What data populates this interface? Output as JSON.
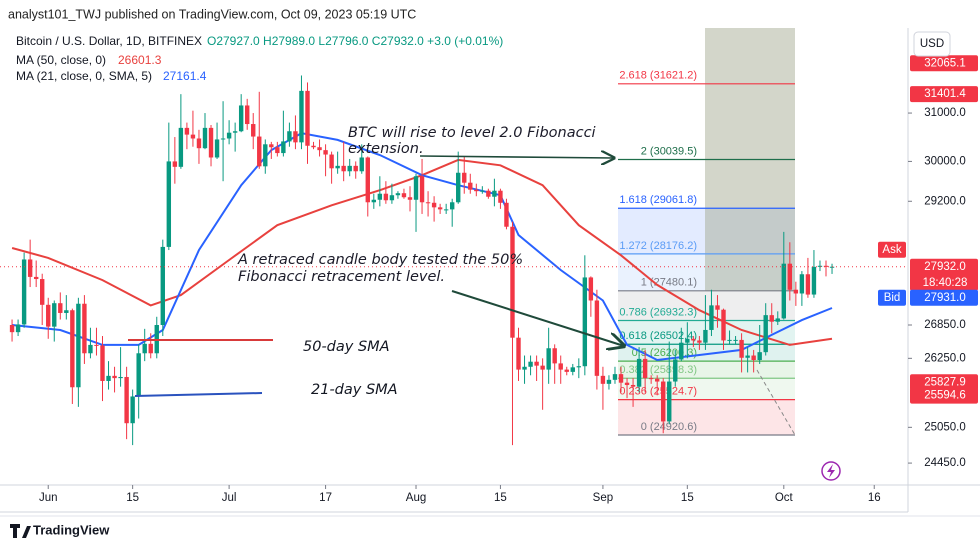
{
  "header": {
    "publisher": "analyst101_TWJ published on TradingView.com, Oct 09, 2023 05:19 UTC",
    "symbol": "Bitcoin / U.S. Dollar, 1D, BITFINEX",
    "ohlc": "O27927.0 H27989.0 L27796.0 C27932.0 +3.0 (+0.01%)",
    "currency": "USD",
    "brand": "TradingView"
  },
  "chart_data": {
    "type": "candlestick",
    "log_scale": true,
    "grid": false,
    "up_color": "#089981",
    "down_color": "#f23645",
    "xlim": [
      -2,
      148.6
    ],
    "xticks": [
      {
        "value": 6,
        "label": "Jun"
      },
      {
        "value": 20,
        "label": "15"
      },
      {
        "value": 36,
        "label": "Jul"
      },
      {
        "value": 52,
        "label": "17"
      },
      {
        "value": 67,
        "label": "Aug"
      },
      {
        "value": 81,
        "label": "15"
      },
      {
        "value": 98,
        "label": "Sep"
      },
      {
        "value": 112,
        "label": "15"
      },
      {
        "value": 128,
        "label": "Oct"
      },
      {
        "value": 143,
        "label": "16"
      }
    ],
    "ylim": [
      24122,
      32796
    ],
    "yticks": [
      {
        "value": 24450,
        "label": "24450.0"
      },
      {
        "value": 25050,
        "label": "25050.0"
      },
      {
        "value": 26250,
        "label": "26250.0"
      },
      {
        "value": 26850,
        "label": "26850.0"
      },
      {
        "value": 29200,
        "label": "29200.0"
      },
      {
        "value": 30000,
        "label": "30000.0"
      },
      {
        "value": 31000,
        "label": "31000.0"
      }
    ],
    "ohlc": [
      [
        26850,
        26950,
        26550,
        26720
      ],
      [
        26720,
        26950,
        26650,
        26860
      ],
      [
        26860,
        28200,
        26800,
        28070
      ],
      [
        28070,
        28450,
        27550,
        27740
      ],
      [
        27740,
        28050,
        27550,
        27700
      ],
      [
        27700,
        27800,
        26850,
        27220
      ],
      [
        27220,
        27350,
        26600,
        26820
      ],
      [
        26820,
        27300,
        26550,
        27250
      ],
      [
        27250,
        27450,
        26950,
        27070
      ],
      [
        27070,
        27400,
        26950,
        27120
      ],
      [
        27120,
        27150,
        25450,
        25740
      ],
      [
        25740,
        27350,
        25400,
        27240
      ],
      [
        27240,
        27400,
        26150,
        26340
      ],
      [
        26340,
        26800,
        26250,
        26490
      ],
      [
        26490,
        26800,
        26300,
        26480
      ],
      [
        26480,
        26650,
        25500,
        25850
      ],
      [
        25850,
        26200,
        25700,
        25940
      ],
      [
        25940,
        26100,
        25650,
        25900
      ],
      [
        25900,
        26450,
        25750,
        25920
      ],
      [
        25920,
        26100,
        24850,
        25120
      ],
      [
        25120,
        25700,
        24750,
        25580
      ],
      [
        25580,
        26500,
        25200,
        26340
      ],
      [
        26340,
        26780,
        26200,
        26510
      ],
      [
        26510,
        26700,
        26250,
        26340
      ],
      [
        26340,
        27000,
        26250,
        26850
      ],
      [
        26850,
        28450,
        26650,
        28310
      ],
      [
        28310,
        30800,
        28250,
        30000
      ],
      [
        30000,
        30500,
        29550,
        29890
      ],
      [
        29890,
        31400,
        29850,
        30690
      ],
      [
        30690,
        30800,
        30250,
        30550
      ],
      [
        30550,
        31050,
        30300,
        30470
      ],
      [
        30470,
        30650,
        29950,
        30270
      ],
      [
        30270,
        31000,
        30250,
        30690
      ],
      [
        30690,
        30750,
        29900,
        30080
      ],
      [
        30080,
        30800,
        30050,
        30450
      ],
      [
        30450,
        31250,
        29600,
        30470
      ],
      [
        30470,
        30850,
        30350,
        30590
      ],
      [
        30590,
        30800,
        30200,
        30620
      ],
      [
        30620,
        31400,
        30600,
        31160
      ],
      [
        31160,
        31300,
        30650,
        30770
      ],
      [
        30770,
        31000,
        30250,
        30510
      ],
      [
        30510,
        31450,
        29850,
        29900
      ],
      [
        29900,
        30450,
        29750,
        30350
      ],
      [
        30350,
        30400,
        30050,
        30290
      ],
      [
        30290,
        30400,
        30100,
        30170
      ],
      [
        30170,
        31050,
        30100,
        30410
      ],
      [
        30410,
        30800,
        30300,
        30620
      ],
      [
        30620,
        30950,
        30250,
        30390
      ],
      [
        30390,
        31800,
        30250,
        31470
      ],
      [
        31470,
        31650,
        29950,
        30320
      ],
      [
        30320,
        30400,
        30250,
        30290
      ],
      [
        30290,
        30450,
        30100,
        30230
      ],
      [
        30230,
        30350,
        29700,
        30140
      ],
      [
        30140,
        30200,
        29550,
        29860
      ],
      [
        29860,
        30200,
        29750,
        29910
      ],
      [
        29910,
        30400,
        29600,
        29800
      ],
      [
        29800,
        30050,
        29700,
        29910
      ],
      [
        29910,
        30000,
        29650,
        29800
      ],
      [
        29800,
        30350,
        29750,
        30080
      ],
      [
        30080,
        30100,
        28900,
        29180
      ],
      [
        29180,
        29350,
        29050,
        29230
      ],
      [
        29230,
        29700,
        29100,
        29350
      ],
      [
        29350,
        29600,
        29150,
        29220
      ],
      [
        29220,
        29550,
        29150,
        29320
      ],
      [
        29320,
        29400,
        29250,
        29360
      ],
      [
        29360,
        29450,
        29250,
        29280
      ],
      [
        29280,
        29500,
        29000,
        29230
      ],
      [
        29230,
        29750,
        28600,
        29700
      ],
      [
        29700,
        30050,
        28950,
        29180
      ],
      [
        29180,
        29400,
        28900,
        29170
      ],
      [
        29170,
        29300,
        28800,
        29080
      ],
      [
        29080,
        29150,
        28950,
        29040
      ],
      [
        29040,
        29150,
        28950,
        29040
      ],
      [
        29040,
        29250,
        28700,
        29180
      ],
      [
        29180,
        30200,
        29150,
        29770
      ],
      [
        29770,
        30100,
        29350,
        29570
      ],
      [
        29570,
        29750,
        29350,
        29430
      ],
      [
        29430,
        29550,
        29300,
        29400
      ],
      [
        29400,
        29500,
        29350,
        29410
      ],
      [
        29410,
        29450,
        29250,
        29290
      ],
      [
        29290,
        29650,
        29100,
        29410
      ],
      [
        29410,
        29450,
        29050,
        29170
      ],
      [
        29170,
        29250,
        28650,
        28700
      ],
      [
        28700,
        28800,
        24750,
        26620
      ],
      [
        26620,
        26800,
        25850,
        26050
      ],
      [
        26050,
        26300,
        25800,
        26100
      ],
      [
        26100,
        26300,
        25950,
        26190
      ],
      [
        26190,
        26300,
        25850,
        26120
      ],
      [
        26120,
        26250,
        25350,
        26050
      ],
      [
        26050,
        26800,
        25800,
        26430
      ],
      [
        26430,
        26500,
        25800,
        26160
      ],
      [
        26160,
        26300,
        25800,
        26050
      ],
      [
        26050,
        26100,
        25950,
        26010
      ],
      [
        26010,
        26150,
        25950,
        26090
      ],
      [
        26090,
        26250,
        25900,
        26110
      ],
      [
        26110,
        28150,
        25950,
        27730
      ],
      [
        27730,
        27750,
        27000,
        27300
      ],
      [
        27300,
        27500,
        25700,
        25940
      ],
      [
        25940,
        26100,
        25350,
        25800
      ],
      [
        25800,
        25950,
        25700,
        25870
      ],
      [
        25870,
        26100,
        25800,
        25970
      ],
      [
        25970,
        26100,
        25650,
        25820
      ],
      [
        25820,
        25900,
        25550,
        25780
      ],
      [
        25780,
        25900,
        25400,
        25750
      ],
      [
        25750,
        26450,
        25650,
        26240
      ],
      [
        26240,
        26400,
        25650,
        25900
      ],
      [
        25900,
        25950,
        25800,
        25890
      ],
      [
        25890,
        25950,
        25600,
        25840
      ],
      [
        25840,
        25900,
        24950,
        25150
      ],
      [
        25150,
        26550,
        25100,
        25840
      ],
      [
        25840,
        26400,
        25750,
        26230
      ],
      [
        26230,
        26800,
        26200,
        26530
      ],
      [
        26530,
        26900,
        26250,
        26600
      ],
      [
        26600,
        26650,
        26450,
        26570
      ],
      [
        26570,
        26650,
        26400,
        26530
      ],
      [
        26530,
        27400,
        26400,
        26760
      ],
      [
        26760,
        27500,
        26650,
        27210
      ],
      [
        27210,
        27400,
        26800,
        27130
      ],
      [
        27130,
        27150,
        26400,
        26570
      ],
      [
        26570,
        26750,
        26500,
        26580
      ],
      [
        26580,
        26650,
        26500,
        26580
      ],
      [
        26580,
        26700,
        26000,
        26260
      ],
      [
        26260,
        26450,
        26000,
        26300
      ],
      [
        26300,
        26400,
        26000,
        26220
      ],
      [
        26220,
        26850,
        26150,
        26360
      ],
      [
        26360,
        27250,
        26300,
        27030
      ],
      [
        27030,
        27250,
        26700,
        26910
      ],
      [
        26910,
        27100,
        26850,
        26970
      ],
      [
        26970,
        28600,
        26950,
        27990
      ],
      [
        27990,
        28400,
        27300,
        27500
      ],
      [
        27500,
        27650,
        27200,
        27430
      ],
      [
        27430,
        27850,
        27200,
        27790
      ],
      [
        27790,
        28100,
        27350,
        27410
      ],
      [
        27410,
        28250,
        27350,
        27930
      ],
      [
        27930,
        28050,
        27850,
        27950
      ],
      [
        27950,
        28050,
        27750,
        27930
      ],
      [
        27927,
        27989,
        27796,
        27932
      ]
    ],
    "series": [
      {
        "name": "MA (50, close, 0)",
        "color": "#e8413e",
        "x": [
          0,
          6,
          15,
          23,
          28,
          36,
          44,
          53,
          61,
          68,
          74,
          81,
          88,
          94,
          101,
          107,
          114,
          121,
          129,
          136
        ],
        "values": [
          28290,
          28100,
          27680,
          27210,
          27400,
          28060,
          28730,
          29120,
          29420,
          29720,
          30030,
          29920,
          29520,
          28730,
          28150,
          27590,
          27120,
          26760,
          26490,
          26601.3
        ]
      },
      {
        "name": "MA (21, close, 0, SMA, 5)",
        "color": "#2962ff",
        "x": [
          0,
          8,
          15,
          21,
          25,
          31,
          38,
          43,
          48,
          54,
          61,
          68,
          74,
          81,
          84,
          91,
          98,
          102,
          107,
          114,
          121,
          126,
          131,
          136
        ],
        "values": [
          26850,
          26760,
          26490,
          26490,
          26760,
          28250,
          29520,
          30230,
          30580,
          30440,
          30130,
          29720,
          29520,
          29320,
          28540,
          27870,
          27300,
          26490,
          26220,
          26310,
          26400,
          26670,
          26940,
          27161.4
        ]
      }
    ],
    "fib_levels": [
      {
        "value": 31621.2,
        "label": "2.618 (31621.2)",
        "color": "#f23645"
      },
      {
        "value": 30039.5,
        "label": "2 (30039.5)",
        "color": "#1e6e4a"
      },
      {
        "value": 29061.8,
        "label": "1.618 (29061.8)",
        "color": "#2962ff"
      },
      {
        "value": 28176.2,
        "label": "1.272 (28176.2)",
        "color": "#5b9cf6"
      },
      {
        "value": 27480.1,
        "label": "1 (27480.1)",
        "color": "#787b86"
      },
      {
        "value": 26932.3,
        "label": "0.786 (26932.3)",
        "color": "#22ab94"
      },
      {
        "value": 26502.4,
        "label": "0.618 (26502.4)",
        "color": "#089981"
      },
      {
        "value": 26200.3,
        "label": "0.5 (26200.3)",
        "color": "#4caf50"
      },
      {
        "value": 25898.3,
        "label": "0.382 (25898.3)",
        "color": "#81c784"
      },
      {
        "value": 25524.7,
        "label": "0.236 (25524.7)",
        "color": "#f23645"
      },
      {
        "value": 24920.6,
        "label": "0 (24920.6)",
        "color": "#787b86"
      }
    ],
    "price_labels": [
      {
        "value": 32065.1,
        "color": "#f23645"
      },
      {
        "value": 31401.4,
        "color": "#f23645"
      },
      {
        "value": 25827.9,
        "color": "#f23645"
      },
      {
        "value": 25594.6,
        "color": "#f23645"
      },
      {
        "value": 27932,
        "label": "27932.0",
        "tag": "Ask",
        "sub": "18:40:28",
        "color": "#f23645"
      },
      {
        "value": 27931,
        "label": "27931.0",
        "tag": "Bid",
        "color": "#2962ff"
      }
    ],
    "annotations": [
      [
        "BTC will rise to level 2.0 Fibonacci",
        "extension."
      ],
      [
        "A retraced candle body tested the 50%",
        "Fibonacci retracement level."
      ],
      "50-day SMA",
      "21-day SMA"
    ]
  }
}
